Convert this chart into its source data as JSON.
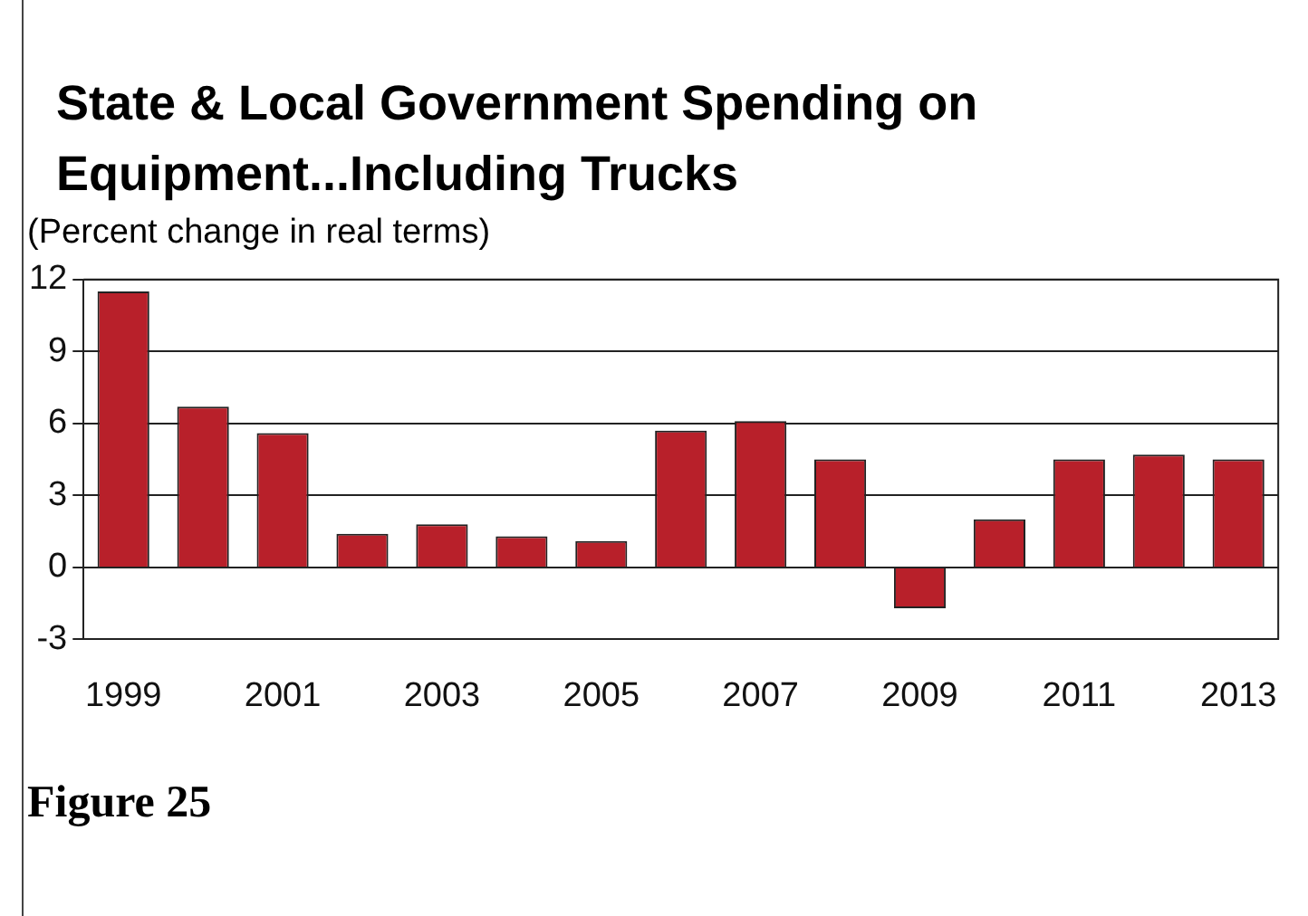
{
  "chart_data": {
    "type": "bar",
    "title": "State & Local Government Spending on Equipment...Including Trucks",
    "subtitle": "(Percent change in real terms)",
    "annotations": [
      "Figure 25"
    ],
    "categories": [
      "1999",
      null,
      "2001",
      null,
      "2003",
      null,
      "2005",
      null,
      "2007",
      null,
      "2009",
      null,
      "2011",
      null,
      "2013"
    ],
    "values": [
      11.5,
      6.7,
      5.6,
      1.4,
      1.8,
      1.3,
      1.1,
      5.7,
      6.1,
      4.5,
      -1.7,
      2.0,
      4.5,
      4.7,
      4.5
    ],
    "color": "#b8202a",
    "ylim": [
      -3,
      12
    ],
    "yticks": [
      -3,
      0,
      3,
      6,
      9,
      12
    ],
    "grid": "y",
    "legend": false
  }
}
